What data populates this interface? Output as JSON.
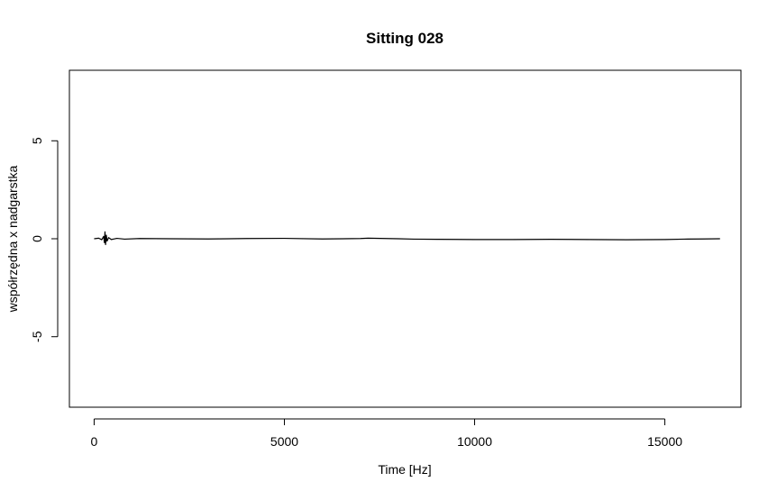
{
  "chart_data": {
    "type": "line",
    "title": "Sitting 028",
    "xlabel": "Time [Hz]",
    "ylabel": "współrzędna x nadgarstka",
    "xlim": [
      -650,
      17000
    ],
    "ylim": [
      -8.6,
      8.6
    ],
    "x_ticks": [
      0,
      5000,
      10000,
      15000
    ],
    "y_ticks": [
      -5,
      0,
      5
    ],
    "x_tick_labels": [
      "0",
      "5000",
      "10000",
      "15000"
    ],
    "y_tick_labels": [
      "-5",
      "0",
      "5"
    ],
    "grid": false,
    "legend": "none",
    "line_color": "#000000",
    "series": [
      {
        "x": [
          0,
          120,
          200,
          250,
          270,
          285,
          300,
          320,
          340,
          380,
          450,
          600,
          800,
          1200,
          2000,
          3000,
          4000,
          5000,
          6000,
          7000,
          7200,
          8000,
          8400,
          9000,
          10000,
          11000,
          12000,
          13000,
          14000,
          15000,
          15500,
          16000,
          16450
        ],
        "y": [
          0.0,
          0.03,
          -0.05,
          0.12,
          -0.2,
          0.35,
          -0.3,
          0.18,
          -0.12,
          0.06,
          -0.04,
          0.02,
          -0.02,
          0.01,
          0.0,
          -0.01,
          0.01,
          0.02,
          -0.01,
          0.01,
          0.03,
          0.0,
          -0.02,
          -0.03,
          -0.04,
          -0.04,
          -0.03,
          -0.04,
          -0.05,
          -0.04,
          -0.02,
          -0.01,
          0.0
        ]
      }
    ]
  }
}
